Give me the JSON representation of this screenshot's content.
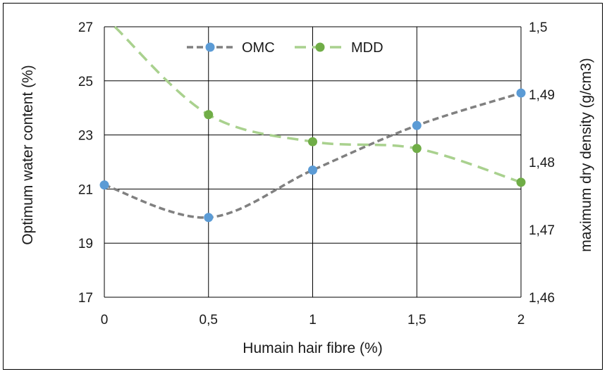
{
  "chart_data": {
    "type": "line",
    "title": "",
    "xlabel": "Humain hair fibre (%)",
    "ylabel": "Optimum water content (%)",
    "y2label": "maximum dry density (g/cm3)",
    "x": [
      0,
      0.5,
      1,
      1.5,
      2
    ],
    "x_tick_labels": [
      "0",
      "0,5",
      "1",
      "1,5",
      "2"
    ],
    "xlim": [
      0,
      2
    ],
    "ylim": [
      17,
      27
    ],
    "y_tick_labels": [
      "17",
      "19",
      "21",
      "23",
      "25",
      "27"
    ],
    "y_ticks": [
      17,
      19,
      21,
      23,
      25,
      27
    ],
    "y2lim": [
      1.46,
      1.5
    ],
    "y2_tick_labels": [
      "1,46",
      "1,47",
      "1,48",
      "1,49",
      "1,5"
    ],
    "y2_ticks": [
      1.46,
      1.47,
      1.48,
      1.49,
      1.5
    ],
    "grid": true,
    "legend_position": "top",
    "series": [
      {
        "name": "OMC",
        "axis": "left",
        "values": [
          21.15,
          19.95,
          21.7,
          23.35,
          24.55
        ],
        "color": "#808080",
        "marker_color": "#5b9bd5",
        "line_style": "dashed"
      },
      {
        "name": "MDD",
        "axis": "right",
        "values_extra": {
          "x": 0.05,
          "y": 1.5
        },
        "values": [
          1.5,
          1.487,
          1.483,
          1.482,
          1.477
        ],
        "marker_x": [
          0.5,
          1,
          1.5,
          2
        ],
        "marker_values": [
          1.487,
          1.483,
          1.482,
          1.477
        ],
        "color": "#a9d18e",
        "marker_color": "#70ad47",
        "line_style": "dashed"
      }
    ]
  }
}
